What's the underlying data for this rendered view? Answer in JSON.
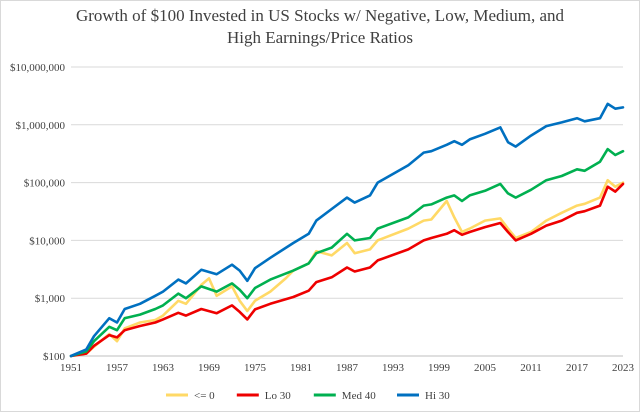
{
  "chart_data": {
    "type": "line",
    "title_lines": [
      "Growth of $100 Invested in US Stocks w/ Negative, Low, Medium, and",
      "High Earnings/Price Ratios"
    ],
    "xlabel": "",
    "ylabel": "",
    "y_scale": "log",
    "ylim": [
      100,
      10000000
    ],
    "xlim": [
      1951,
      2023
    ],
    "y_tick_values": [
      100,
      1000,
      10000,
      100000,
      1000000,
      10000000
    ],
    "y_tick_labels": [
      "$100",
      "$1,000",
      "$10,000",
      "$100,000",
      "$1,000,000",
      "$10,000,000"
    ],
    "x_ticks": [
      1951,
      1957,
      1963,
      1969,
      1975,
      1981,
      1987,
      1993,
      1999,
      2005,
      2011,
      2017,
      2023
    ],
    "grid": "horizontal",
    "legend_position": "bottom",
    "series": [
      {
        "name": "<= 0",
        "color": "#FFD966",
        "x": [
          1951,
          1953,
          1954,
          1956,
          1957,
          1958,
          1960,
          1962,
          1963,
          1965,
          1966,
          1968,
          1969,
          1970,
          1972,
          1973,
          1974,
          1975,
          1977,
          1979,
          1980,
          1982,
          1983,
          1985,
          1987,
          1988,
          1990,
          1991,
          1995,
          1997,
          1998,
          2000,
          2001,
          2002,
          2003,
          2005,
          2007,
          2008,
          2009,
          2011,
          2013,
          2015,
          2017,
          2018,
          2020,
          2021,
          2022,
          2023
        ],
        "values": [
          100,
          110,
          145,
          240,
          180,
          300,
          380,
          420,
          500,
          900,
          800,
          1700,
          2200,
          1100,
          1600,
          900,
          600,
          900,
          1300,
          2200,
          3000,
          4000,
          6500,
          5500,
          9000,
          6000,
          7000,
          10000,
          16000,
          22000,
          23000,
          48000,
          25000,
          14000,
          16000,
          22000,
          24000,
          16000,
          11000,
          14000,
          22000,
          30000,
          40000,
          43000,
          55000,
          110000,
          85000,
          100000
        ]
      },
      {
        "name": "Lo 30",
        "color": "#EE0000",
        "x": [
          1951,
          1953,
          1954,
          1956,
          1957,
          1958,
          1960,
          1962,
          1963,
          1965,
          1966,
          1968,
          1970,
          1972,
          1973,
          1974,
          1975,
          1977,
          1980,
          1982,
          1983,
          1985,
          1987,
          1988,
          1990,
          1991,
          1995,
          1997,
          1998,
          2000,
          2001,
          2002,
          2003,
          2005,
          2007,
          2008,
          2009,
          2011,
          2013,
          2015,
          2017,
          2018,
          2020,
          2021,
          2022,
          2023
        ],
        "values": [
          100,
          110,
          150,
          230,
          210,
          280,
          330,
          380,
          430,
          560,
          500,
          650,
          550,
          750,
          580,
          430,
          640,
          800,
          1050,
          1350,
          1900,
          2300,
          3400,
          2900,
          3400,
          4500,
          7000,
          10000,
          11000,
          13000,
          15000,
          12500,
          14000,
          17000,
          20000,
          14000,
          10000,
          13000,
          18000,
          22000,
          30000,
          32000,
          40000,
          85000,
          70000,
          95000
        ]
      },
      {
        "name": "Med 40",
        "color": "#00B050",
        "x": [
          1951,
          1953,
          1954,
          1956,
          1957,
          1958,
          1960,
          1962,
          1963,
          1965,
          1966,
          1968,
          1970,
          1972,
          1973,
          1974,
          1975,
          1977,
          1980,
          1982,
          1983,
          1985,
          1987,
          1988,
          1990,
          1991,
          1995,
          1997,
          1998,
          2000,
          2001,
          2002,
          2003,
          2005,
          2007,
          2008,
          2009,
          2011,
          2013,
          2015,
          2017,
          2018,
          2020,
          2021,
          2022,
          2023
        ],
        "values": [
          100,
          120,
          180,
          320,
          280,
          450,
          520,
          650,
          750,
          1200,
          1000,
          1600,
          1300,
          1800,
          1400,
          1000,
          1500,
          2100,
          3000,
          4000,
          6000,
          7500,
          13000,
          10000,
          11000,
          16000,
          25000,
          40000,
          42000,
          55000,
          60000,
          48000,
          60000,
          72000,
          95000,
          65000,
          55000,
          75000,
          110000,
          130000,
          170000,
          160000,
          230000,
          380000,
          300000,
          350000
        ]
      },
      {
        "name": "Hi 30",
        "color": "#0070C0",
        "x": [
          1951,
          1953,
          1954,
          1956,
          1957,
          1958,
          1960,
          1962,
          1963,
          1965,
          1966,
          1968,
          1970,
          1972,
          1973,
          1974,
          1975,
          1977,
          1980,
          1982,
          1983,
          1985,
          1987,
          1988,
          1990,
          1991,
          1995,
          1997,
          1998,
          2000,
          2001,
          2002,
          2003,
          2005,
          2007,
          2008,
          2009,
          2011,
          2013,
          2015,
          2017,
          2018,
          2020,
          2021,
          2022,
          2023
        ],
        "values": [
          100,
          130,
          220,
          450,
          380,
          650,
          800,
          1100,
          1300,
          2100,
          1800,
          3100,
          2600,
          3800,
          3000,
          2000,
          3300,
          5000,
          9000,
          13000,
          22000,
          35000,
          55000,
          45000,
          60000,
          100000,
          200000,
          330000,
          350000,
          450000,
          520000,
          450000,
          560000,
          700000,
          900000,
          500000,
          420000,
          650000,
          950000,
          1100000,
          1300000,
          1150000,
          1300000,
          2300000,
          1900000,
          2000000
        ]
      }
    ]
  }
}
